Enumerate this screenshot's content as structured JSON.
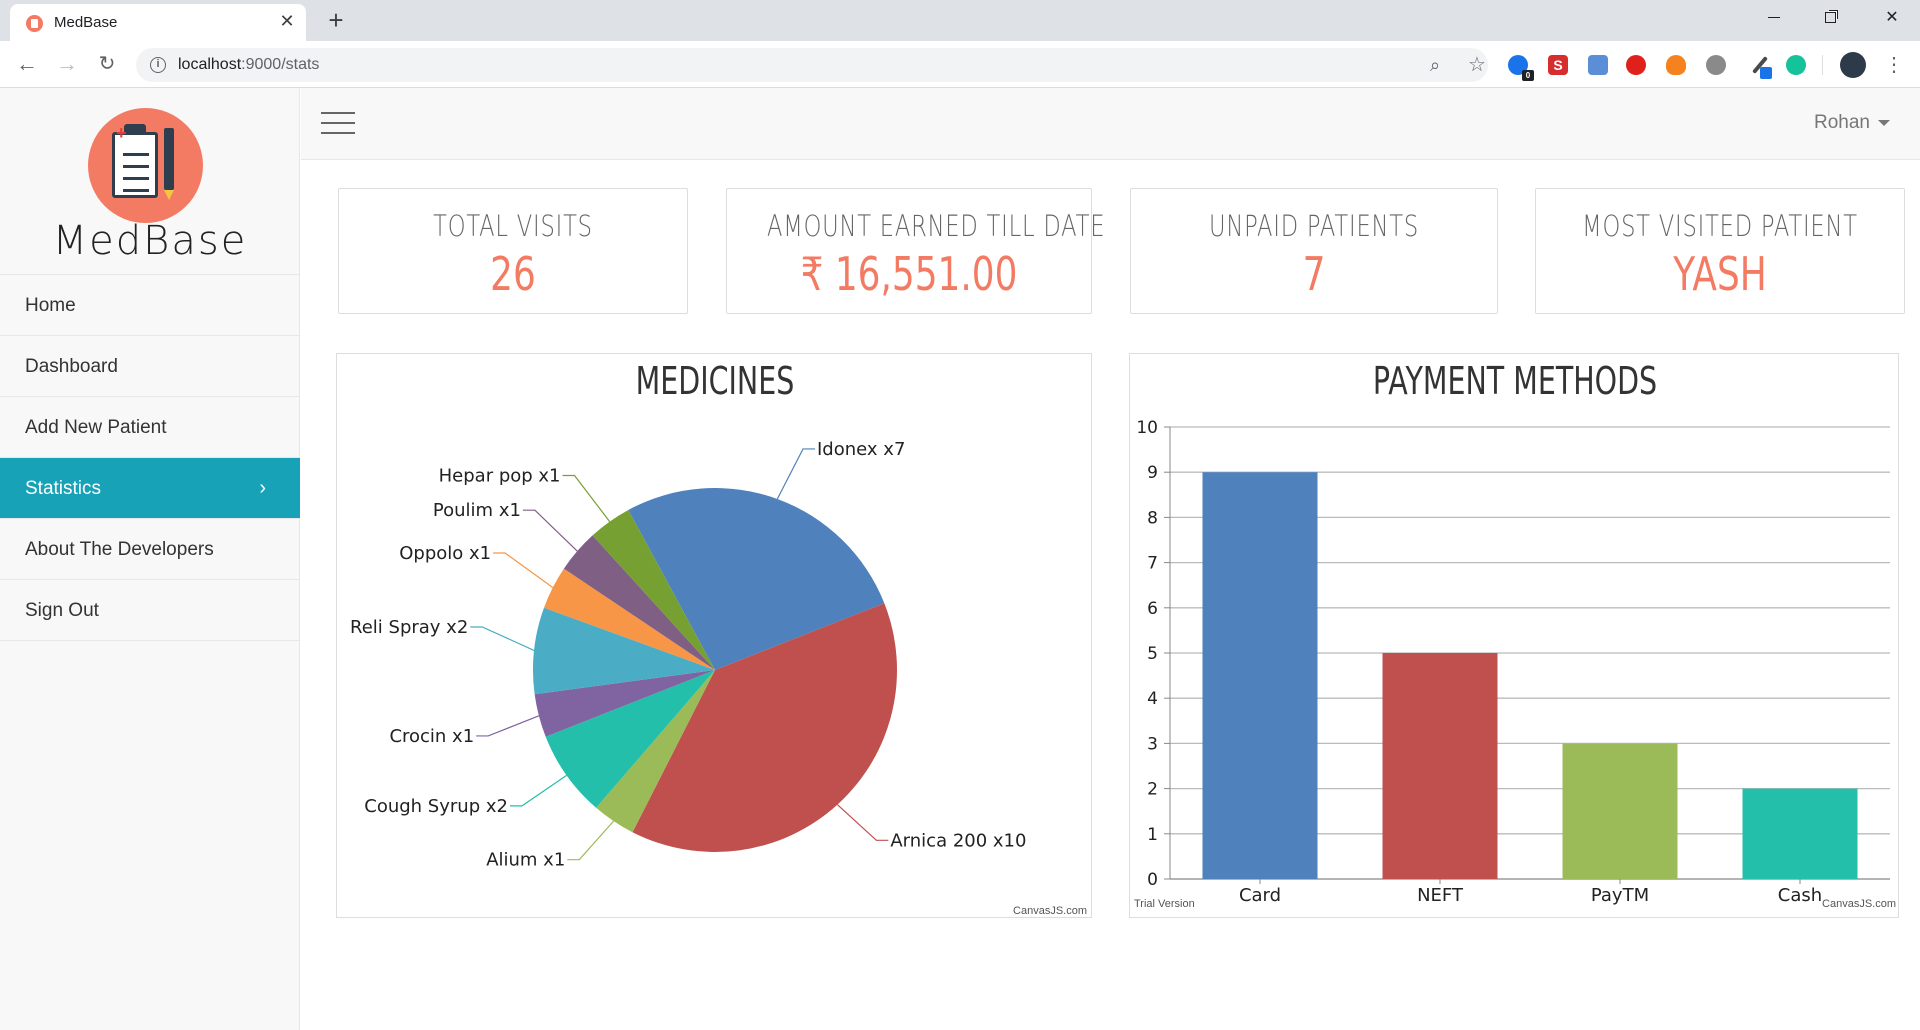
{
  "browser": {
    "tab_title": "MedBase",
    "url_host": "localhost",
    "url_path": ":9000/stats",
    "extension_badge": "0",
    "ext_letter": "S"
  },
  "app": {
    "brand": "MedBase",
    "user": "Rohan"
  },
  "sidebar": {
    "items": [
      {
        "label": "Home"
      },
      {
        "label": "Dashboard"
      },
      {
        "label": "Add New Patient"
      },
      {
        "label": "Statistics",
        "active": true
      },
      {
        "label": "About The Developers"
      },
      {
        "label": "Sign Out"
      }
    ]
  },
  "stats": [
    {
      "label": "TOTAL VISITS",
      "value": "26"
    },
    {
      "label": "AMOUNT EARNED TILL DATE",
      "value": "₹ 16,551.00"
    },
    {
      "label": "UNPAID PATIENTS",
      "value": "7"
    },
    {
      "label": "MOST VISITED PATIENT",
      "value": "YASH"
    }
  ],
  "colors": {
    "accent": "#f37b63",
    "active_nav": "#17a2b8"
  },
  "chart_data": [
    {
      "type": "pie",
      "title": "MEDICINES",
      "credit": "CanvasJS.com",
      "slices": [
        {
          "label": "Idonex x7",
          "value": 7,
          "color": "#4F81BC"
        },
        {
          "label": "Arnica 200 x10",
          "value": 10,
          "color": "#C0504E"
        },
        {
          "label": "Alium x1",
          "value": 1,
          "color": "#9BBB58"
        },
        {
          "label": "Cough Syrup x2",
          "value": 2,
          "color": "#23BFAA"
        },
        {
          "label": "Crocin x1",
          "value": 1,
          "color": "#8064A1"
        },
        {
          "label": "Reli Spray x2",
          "value": 2,
          "color": "#4AACC5"
        },
        {
          "label": "Oppolo x1",
          "value": 1,
          "color": "#F79647"
        },
        {
          "label": "Poulim x1",
          "value": 1,
          "color": "#7F6084"
        },
        {
          "label": "Hepar pop x1",
          "value": 1,
          "color": "#77A033"
        }
      ]
    },
    {
      "type": "bar",
      "title": "PAYMENT METHODS",
      "credit": "CanvasJS.com",
      "watermark": "Trial Version",
      "categories": [
        "Card",
        "NEFT",
        "PayTM",
        "Cash"
      ],
      "values": [
        9,
        5,
        3,
        2
      ],
      "colors": [
        "#4F81BC",
        "#C0504E",
        "#9BBB58",
        "#23BFAA"
      ],
      "ylim": [
        0,
        10
      ],
      "yticks": [
        0,
        1,
        2,
        3,
        4,
        5,
        6,
        7,
        8,
        9,
        10
      ],
      "grid": true
    }
  ]
}
